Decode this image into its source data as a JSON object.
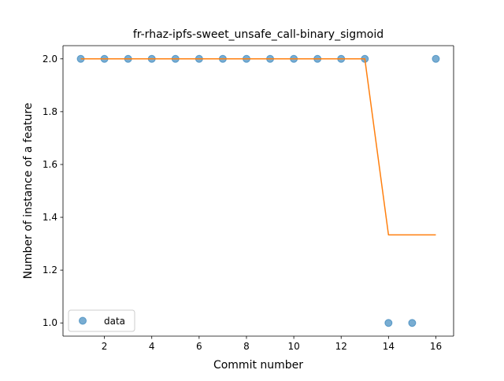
{
  "chart_data": {
    "type": "scatter",
    "title": "fr-rhaz-ipfs-sweet_unsafe_call-binary_sigmoid",
    "xlabel": "Commit number",
    "ylabel": "Number of instance of a feature",
    "xlim": [
      0.25,
      16.75
    ],
    "ylim": [
      0.95,
      2.05
    ],
    "xticks": [
      2,
      4,
      6,
      8,
      10,
      12,
      14,
      16
    ],
    "xtick_labels": [
      "2",
      "4",
      "6",
      "8",
      "10",
      "12",
      "14",
      "16"
    ],
    "yticks": [
      1.0,
      1.2,
      1.4,
      1.6,
      1.8,
      2.0
    ],
    "ytick_labels": [
      "1.0",
      "1.2",
      "1.4",
      "1.6",
      "1.8",
      "2.0"
    ],
    "grid": false,
    "legend_position": "lower-left",
    "series": [
      {
        "name": "data",
        "kind": "scatter",
        "color": "#1f77b4",
        "x": [
          1,
          2,
          3,
          4,
          5,
          6,
          7,
          8,
          9,
          10,
          11,
          12,
          13,
          14,
          15,
          16
        ],
        "y": [
          2,
          2,
          2,
          2,
          2,
          2,
          2,
          2,
          2,
          2,
          2,
          2,
          2,
          1,
          1,
          2
        ]
      },
      {
        "kind": "line",
        "color": "#ff7f0e",
        "x": [
          1,
          2,
          3,
          4,
          5,
          6,
          7,
          8,
          9,
          10,
          11,
          12,
          13,
          14,
          15,
          16
        ],
        "y": [
          2,
          2,
          2,
          2,
          2,
          2,
          2,
          2,
          2,
          2,
          2,
          2,
          2,
          1.3333,
          1.3333,
          1.3333
        ]
      }
    ]
  }
}
